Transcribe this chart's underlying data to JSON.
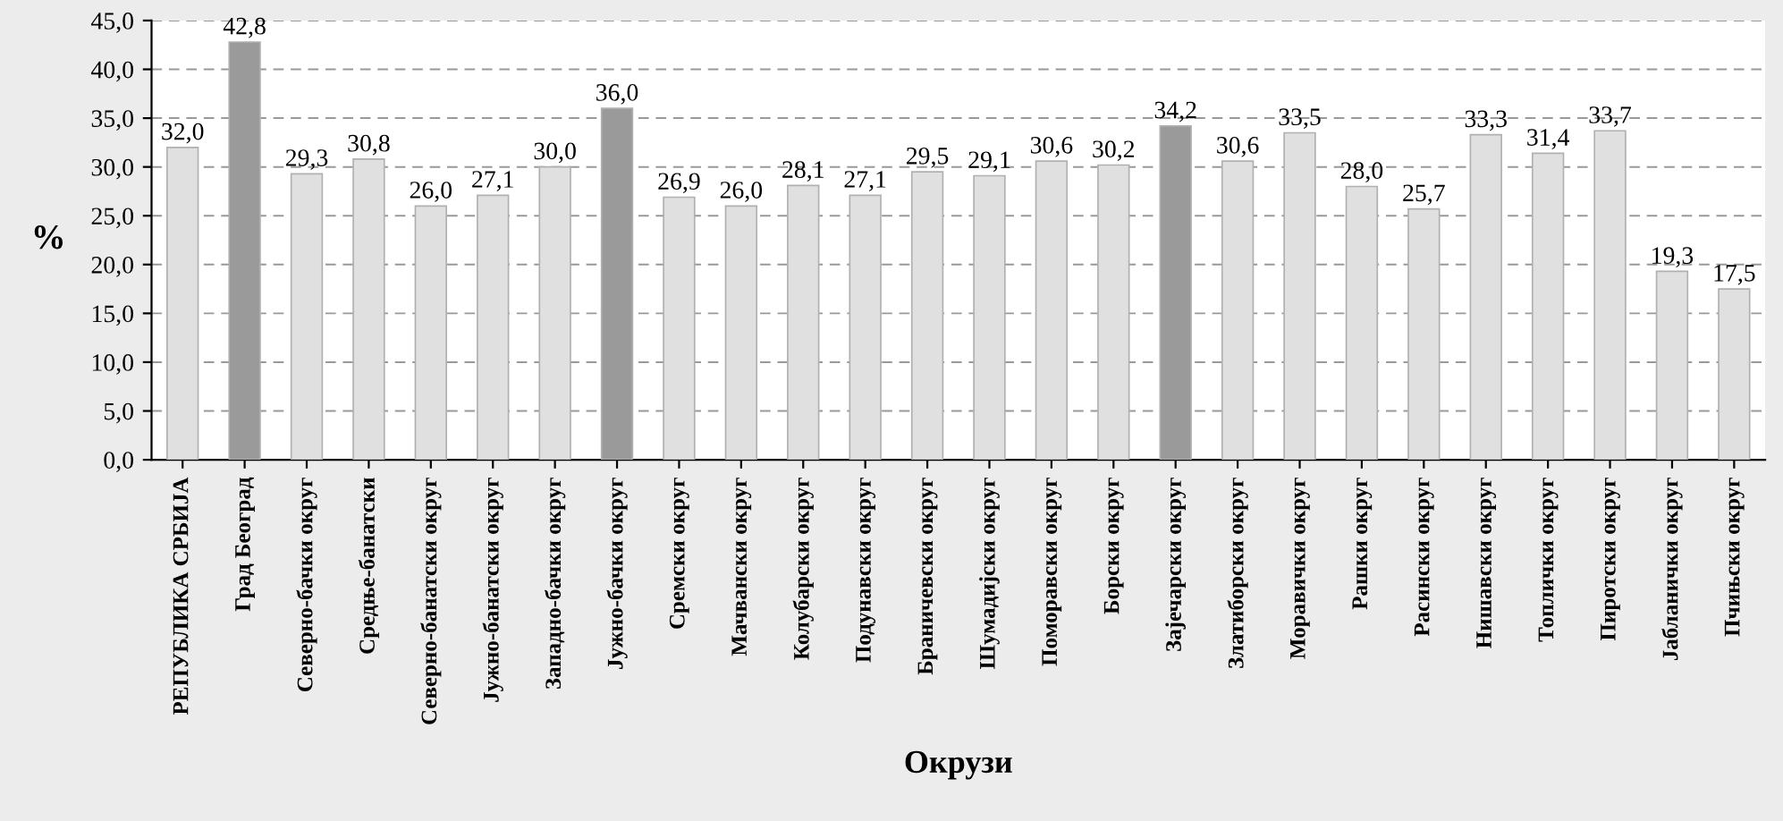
{
  "chart_data": {
    "type": "bar",
    "xlabel": "Окрузи",
    "ylabel": "%",
    "categories": [
      "РЕПУБЛИКА СРБИЈА",
      "Град Београд",
      "Северно-бачки округ",
      "Средње-банатски",
      "Северно-банатски округ",
      "Јужно-банатски округ",
      "Западно-бачки округ",
      "Јужно-бачки округ",
      "Сремски округ",
      "Мачвански округ",
      "Колубарски округ",
      "Подунавски округ",
      "Браничевски округ",
      "Шумадијски округ",
      "Поморавски округ",
      "Борски округ",
      "Зајечарски округ",
      "Златиборски округ",
      "Моравички округ",
      "Рашки округ",
      "Расински округ",
      "Нишавски округ",
      "Топлички округ",
      "Пиротски округ",
      "Јабланички округ",
      "Пчињски округ"
    ],
    "values": [
      32.0,
      42.8,
      29.3,
      30.8,
      26.0,
      27.1,
      30.0,
      36.0,
      26.9,
      26.0,
      28.1,
      27.1,
      29.5,
      29.1,
      30.6,
      30.2,
      34.2,
      30.6,
      33.5,
      28.0,
      25.7,
      33.3,
      31.4,
      33.7,
      19.3,
      17.5
    ],
    "value_labels": [
      "32,0",
      "42,8",
      "29,3",
      "30,8",
      "26,0",
      "27,1",
      "30,0",
      "36,0",
      "26,9",
      "26,0",
      "28,1",
      "27,1",
      "29,5",
      "29,1",
      "30,6",
      "30,2",
      "34,2",
      "30,6",
      "33,5",
      "28,0",
      "25,7",
      "33,3",
      "31,4",
      "33,7",
      "19,3",
      "17,5"
    ],
    "colors": [
      "#e0e0e0",
      "#9a9a9a",
      "#e0e0e0",
      "#e0e0e0",
      "#e0e0e0",
      "#e0e0e0",
      "#e0e0e0",
      "#9a9a9a",
      "#e0e0e0",
      "#e0e0e0",
      "#e0e0e0",
      "#e0e0e0",
      "#e0e0e0",
      "#e0e0e0",
      "#e0e0e0",
      "#e0e0e0",
      "#9a9a9a",
      "#e0e0e0",
      "#e0e0e0",
      "#e0e0e0",
      "#e0e0e0",
      "#e0e0e0",
      "#e0e0e0",
      "#e0e0e0",
      "#e0e0e0",
      "#e0e0e0"
    ],
    "ylim": [
      0,
      45
    ],
    "yticks": [
      {
        "value": 0,
        "label": "0,0"
      },
      {
        "value": 5,
        "label": "5,0"
      },
      {
        "value": 10,
        "label": "10,0"
      },
      {
        "value": 15,
        "label": "15,0"
      },
      {
        "value": 20,
        "label": "20,0"
      },
      {
        "value": 25,
        "label": "25,0"
      },
      {
        "value": 30,
        "label": "30,0"
      },
      {
        "value": 35,
        "label": "35,0"
      },
      {
        "value": 40,
        "label": "40,0"
      },
      {
        "value": 45,
        "label": "45,0"
      }
    ],
    "grid": "y"
  }
}
